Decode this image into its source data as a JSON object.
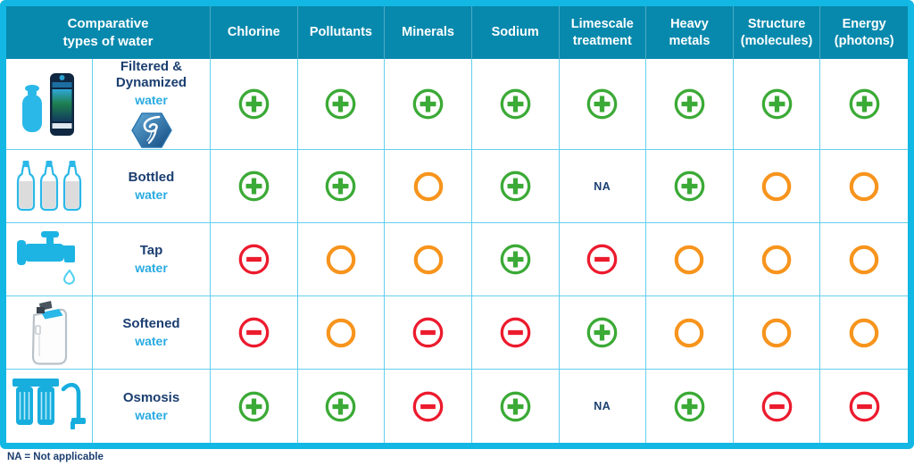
{
  "page": {
    "footnote": "NA = Not applicable"
  },
  "table": {
    "corner_label": "Comparative\ntypes of water",
    "columns": [
      "Chlorine",
      "Pollutants",
      "Minerals",
      "Sodium",
      "Limescale\ntreatment",
      "Heavy\nmetals",
      "Structure\n(molecules)",
      "Energy\n(photons)"
    ],
    "rows": [
      {
        "icon": "filter-dynamizer-icon",
        "name": "Filtered &\nDynamized",
        "subname": "water",
        "badge": "vortex-hexagon-icon",
        "values": [
          "plus",
          "plus",
          "plus",
          "plus",
          "plus",
          "plus",
          "plus",
          "plus"
        ]
      },
      {
        "icon": "bottles-icon",
        "name": "Bottled",
        "subname": "water",
        "values": [
          "plus",
          "plus",
          "neutral",
          "plus",
          "na",
          "plus",
          "neutral",
          "neutral"
        ]
      },
      {
        "icon": "tap-icon",
        "name": "Tap",
        "subname": "water",
        "values": [
          "minus",
          "neutral",
          "neutral",
          "plus",
          "minus",
          "neutral",
          "neutral",
          "neutral"
        ]
      },
      {
        "icon": "softener-icon",
        "name": "Softened",
        "subname": "water",
        "values": [
          "minus",
          "neutral",
          "minus",
          "minus",
          "plus",
          "neutral",
          "neutral",
          "neutral"
        ]
      },
      {
        "icon": "osmosis-icon",
        "name": "Osmosis",
        "subname": "water",
        "values": [
          "plus",
          "plus",
          "minus",
          "plus",
          "na",
          "plus",
          "minus",
          "minus"
        ]
      }
    ]
  },
  "legend": {
    "na_label": "NA",
    "plus_meaning": "positive (green plus)",
    "neutral_meaning": "neutral (orange circle)",
    "minus_meaning": "negative (red minus)"
  },
  "colors": {
    "border": "#12b7e3",
    "header_bg": "#0789ad",
    "grid_line": "#63cfee",
    "navy": "#1b3e70",
    "cyan_text": "#29abe2",
    "positive": "#3baa36",
    "neutral": "#f7941d",
    "negative": "#ec1b2e"
  },
  "chart_data": {
    "type": "table",
    "title": "Comparative types of water",
    "columns": [
      "Chlorine",
      "Pollutants",
      "Minerals",
      "Sodium",
      "Limescale treatment",
      "Heavy metals",
      "Structure (molecules)",
      "Energy (photons)"
    ],
    "rows": [
      {
        "label": "Filtered & Dynamized water",
        "values": [
          "plus",
          "plus",
          "plus",
          "plus",
          "plus",
          "plus",
          "plus",
          "plus"
        ]
      },
      {
        "label": "Bottled water",
        "values": [
          "plus",
          "plus",
          "neutral",
          "plus",
          "NA",
          "plus",
          "neutral",
          "neutral"
        ]
      },
      {
        "label": "Tap water",
        "values": [
          "minus",
          "neutral",
          "neutral",
          "plus",
          "minus",
          "neutral",
          "neutral",
          "neutral"
        ]
      },
      {
        "label": "Softened water",
        "values": [
          "minus",
          "neutral",
          "minus",
          "minus",
          "plus",
          "neutral",
          "neutral",
          "neutral"
        ]
      },
      {
        "label": "Osmosis water",
        "values": [
          "plus",
          "plus",
          "minus",
          "plus",
          "NA",
          "plus",
          "minus",
          "minus"
        ]
      }
    ],
    "legend": {
      "plus": "positive (green plus)",
      "neutral": "neutral (orange circle)",
      "minus": "negative (red minus)",
      "NA": "Not applicable"
    }
  }
}
